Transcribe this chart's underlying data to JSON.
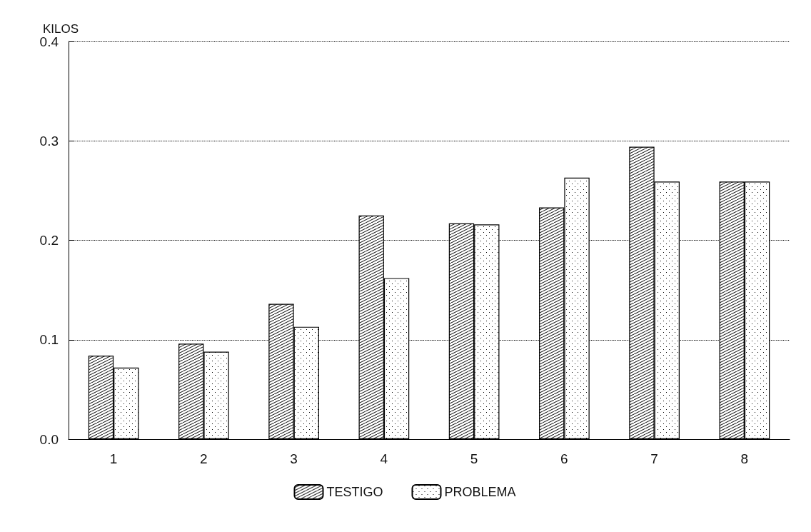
{
  "chart_data": {
    "type": "bar",
    "ylabel": "KILOS",
    "categories": [
      "1",
      "2",
      "3",
      "4",
      "5",
      "6",
      "7",
      "8"
    ],
    "series": [
      {
        "name": "TESTIGO",
        "color": "#000000",
        "values": [
          0.084,
          0.096,
          0.136,
          0.225,
          0.217,
          0.233,
          0.294,
          0.259
        ]
      },
      {
        "name": "PROBLEMA",
        "color": "#000000",
        "values": [
          0.072,
          0.088,
          0.113,
          0.162,
          0.216,
          0.263,
          0.259,
          0.259
        ]
      }
    ],
    "ylim": [
      0,
      0.4
    ],
    "yticks": [
      {
        "value": 0,
        "label": "0.0"
      },
      0.1,
      0.2,
      0.3,
      0.4
    ],
    "grid": "y",
    "legend": "bottom"
  }
}
